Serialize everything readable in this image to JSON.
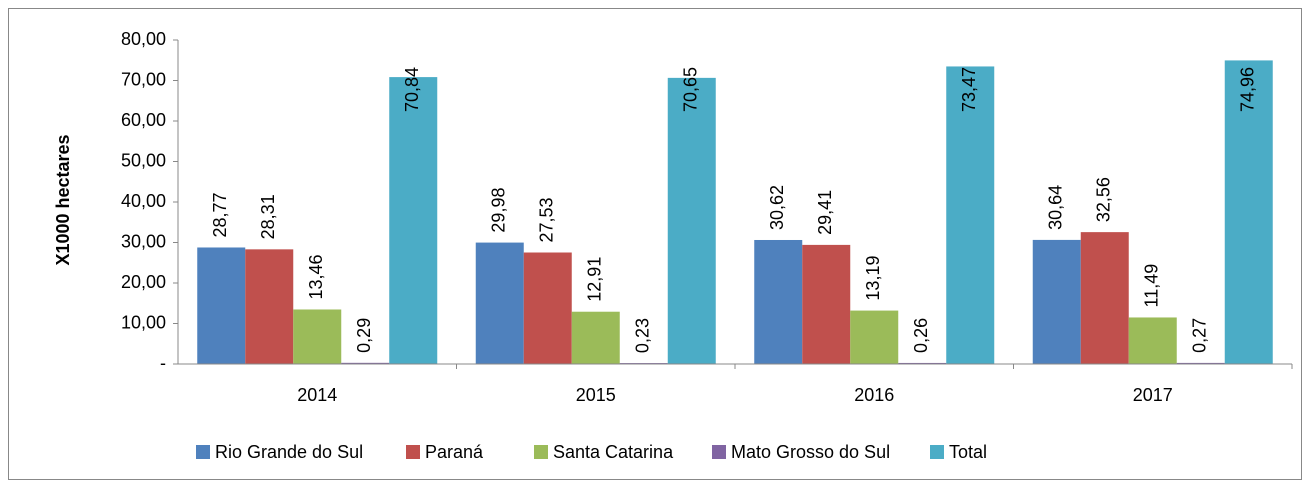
{
  "chart_data": {
    "type": "bar",
    "y_label": "X1000 hectares",
    "categories": [
      "2014",
      "2015",
      "2016",
      "2017"
    ],
    "series": [
      {
        "name": "Rio Grande do Sul",
        "color": "#4f81bd",
        "values": [
          28.77,
          29.98,
          30.62,
          30.64
        ],
        "value_labels": [
          "28,77",
          "29,98",
          "30,62",
          "30,64"
        ]
      },
      {
        "name": "Paraná",
        "color": "#c0504d",
        "values": [
          28.31,
          27.53,
          29.41,
          32.56
        ],
        "value_labels": [
          "28,31",
          "27,53",
          "29,41",
          "32,56"
        ]
      },
      {
        "name": "Santa Catarina",
        "color": "#9bbb59",
        "values": [
          13.46,
          12.91,
          13.19,
          11.49
        ],
        "value_labels": [
          "13,46",
          "12,91",
          "13,19",
          "11,49"
        ]
      },
      {
        "name": "Mato Grosso do Sul",
        "color": "#8064a2",
        "values": [
          0.29,
          0.23,
          0.26,
          0.27
        ],
        "value_labels": [
          "0,29",
          "0,23",
          "0,26",
          "0,27"
        ]
      },
      {
        "name": "Total",
        "color": "#4bacc6",
        "values": [
          70.84,
          70.65,
          73.47,
          74.96
        ],
        "value_labels": [
          "70,84",
          "70,65",
          "73,47",
          "74,96"
        ]
      }
    ],
    "ylim": [
      0,
      80
    ],
    "yticks": [
      {
        "value": 0,
        "label": "-"
      },
      {
        "value": 10,
        "label": "10,00"
      },
      {
        "value": 20,
        "label": "20,00"
      },
      {
        "value": 30,
        "label": "30,00"
      },
      {
        "value": 40,
        "label": "40,00"
      },
      {
        "value": 50,
        "label": "50,00"
      },
      {
        "value": 60,
        "label": "60,00"
      },
      {
        "value": 70,
        "label": "70,00"
      },
      {
        "value": 80,
        "label": "80,00"
      }
    ],
    "legend": "bottom"
  }
}
